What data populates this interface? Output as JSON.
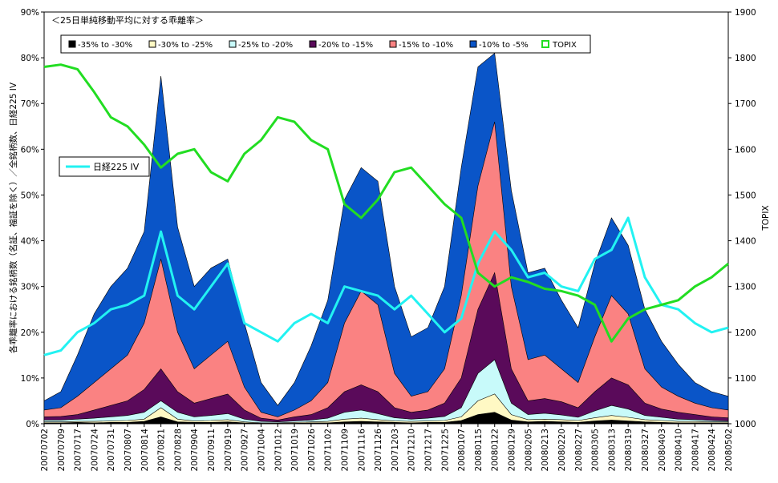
{
  "chart_data": {
    "type": "area",
    "title": "＜25日単純移動平均に対する乖離率＞",
    "ylabel_left": "各乖離率における銘柄数（名証、福証を除く）／全銘柄数、日経225 IV",
    "ylabel_right": "TOPIX",
    "left_axis": {
      "min": 0,
      "max": 90,
      "step": 10,
      "format": "percent"
    },
    "right_axis": {
      "min": 1000,
      "max": 1900,
      "step": 100
    },
    "x_tick_labels": [
      "20070702",
      "20070709",
      "20070717",
      "20070724",
      "20070731",
      "20070807",
      "20070814",
      "20070821",
      "20070828",
      "20070904",
      "20070911",
      "20070919",
      "20070927",
      "20071004",
      "20071012",
      "20071019",
      "20071026",
      "20071102",
      "20071109",
      "20071116",
      "20071126",
      "20071203",
      "20071210",
      "20071217",
      "20071225",
      "20080107",
      "20080115",
      "20080122",
      "20080129",
      "20080205",
      "20080213",
      "20080220",
      "20080227",
      "20080305",
      "20080313",
      "20080319",
      "20080327",
      "20080403",
      "20080410",
      "20080417",
      "20080424",
      "20080502"
    ],
    "legend_main": [
      "-35% to -30%",
      "-30% to -25%",
      "-25% to -20%",
      "-20% to -15%",
      "-15% to -10%",
      "-10% to -5%",
      "TOPIX"
    ],
    "legend_iv": "日経225 IV",
    "colors": {
      "s35": "#000000",
      "s30": "#fff9c4",
      "s25": "#c8fafa",
      "s20": "#5a0a5a",
      "s15": "#fa8282",
      "s10": "#0a55c8",
      "topix": "#22dd22",
      "iv": "#22f2f2"
    },
    "series_stacked_cumulative": [
      {
        "name": "-35% to -30%",
        "values": [
          0.2,
          0.2,
          0.3,
          0.2,
          0.3,
          0.3,
          0.5,
          1.5,
          0.4,
          0.3,
          0.3,
          0.4,
          0.2,
          0.1,
          0.1,
          0.1,
          0.2,
          0.2,
          0.4,
          0.5,
          0.4,
          0.3,
          0.2,
          0.3,
          0.3,
          0.7,
          2.0,
          2.5,
          0.8,
          0.4,
          0.5,
          0.4,
          0.3,
          0.6,
          0.8,
          0.6,
          0.4,
          0.3,
          0.2,
          0.2,
          0.2,
          0.2
        ]
      },
      {
        "name": "-30% to -25%",
        "values": [
          0.4,
          0.4,
          0.5,
          0.5,
          0.6,
          0.7,
          1.0,
          3.5,
          1.0,
          0.6,
          0.7,
          0.9,
          0.4,
          0.2,
          0.2,
          0.3,
          0.4,
          0.5,
          1.0,
          1.2,
          0.9,
          0.6,
          0.5,
          0.6,
          0.7,
          1.5,
          5.0,
          6.5,
          2.0,
          0.9,
          1.0,
          0.9,
          0.7,
          1.3,
          1.8,
          1.4,
          0.9,
          0.7,
          0.5,
          0.5,
          0.4,
          0.4
        ]
      },
      {
        "name": "-25% to -20%",
        "values": [
          0.8,
          0.8,
          1.0,
          1.2,
          1.5,
          1.8,
          2.5,
          5.0,
          2.5,
          1.5,
          1.8,
          2.2,
          1.0,
          0.5,
          0.4,
          0.6,
          0.8,
          1.2,
          2.5,
          3.0,
          2.2,
          1.3,
          1.0,
          1.2,
          1.6,
          3.5,
          11.0,
          14.0,
          4.5,
          2.0,
          2.3,
          1.9,
          1.4,
          2.8,
          4.0,
          3.2,
          1.8,
          1.4,
          1.0,
          0.9,
          0.7,
          0.6
        ]
      },
      {
        "name": "-20% to -15%",
        "values": [
          1.5,
          1.6,
          2.0,
          3.0,
          4.0,
          5.0,
          7.5,
          12.0,
          7.0,
          4.5,
          5.5,
          6.5,
          3.0,
          1.2,
          0.8,
          1.5,
          2.0,
          3.5,
          7.0,
          8.5,
          7.0,
          3.5,
          2.5,
          3.0,
          4.5,
          10.0,
          25.0,
          33.0,
          12.0,
          5.0,
          5.5,
          4.8,
          3.5,
          7.0,
          10.0,
          8.5,
          4.5,
          3.2,
          2.5,
          2.0,
          1.5,
          1.3
        ]
      },
      {
        "name": "-15% to -10%",
        "values": [
          3.0,
          3.5,
          6.0,
          9.0,
          12.0,
          15.0,
          22.0,
          36.0,
          20.0,
          12.0,
          15.0,
          18.0,
          8.0,
          2.5,
          1.5,
          3.0,
          5.0,
          9.0,
          22.0,
          29.0,
          26.0,
          11.0,
          6.0,
          7.0,
          12.0,
          28.0,
          52.0,
          66.0,
          30.0,
          14.0,
          15.0,
          12.0,
          9.0,
          19.0,
          28.0,
          24.0,
          12.0,
          8.0,
          6.0,
          4.5,
          3.5,
          3.0
        ]
      },
      {
        "name": "-10% to -5%",
        "values": [
          5.0,
          7.0,
          15.0,
          24.0,
          30.0,
          34.0,
          42.0,
          76.0,
          43.0,
          30.0,
          34.0,
          36.0,
          22.0,
          9.0,
          4.0,
          9.0,
          17.0,
          27.0,
          49.0,
          56.0,
          53.0,
          30.0,
          19.0,
          21.0,
          30.0,
          56.0,
          78.0,
          81.0,
          51.0,
          33.0,
          34.0,
          27.0,
          21.0,
          35.0,
          45.0,
          39.0,
          25.0,
          18.0,
          13.0,
          9.0,
          7.0,
          6.0
        ]
      }
    ],
    "topix": [
      1780,
      1785,
      1775,
      1725,
      1670,
      1650,
      1610,
      1560,
      1590,
      1600,
      1550,
      1530,
      1590,
      1620,
      1670,
      1660,
      1620,
      1600,
      1480,
      1450,
      1490,
      1550,
      1560,
      1520,
      1480,
      1450,
      1330,
      1300,
      1320,
      1310,
      1295,
      1290,
      1280,
      1260,
      1180,
      1230,
      1250,
      1260,
      1270,
      1300,
      1320,
      1350
    ],
    "nikkei225_iv": [
      15,
      16,
      20,
      22,
      25,
      26,
      28,
      42,
      28,
      25,
      30,
      35,
      22,
      20,
      18,
      22,
      24,
      22,
      30,
      29,
      28,
      25,
      28,
      24,
      20,
      23,
      35,
      42,
      38,
      32,
      33,
      30,
      29,
      36,
      38,
      45,
      32,
      26,
      25,
      22,
      20,
      21
    ]
  }
}
